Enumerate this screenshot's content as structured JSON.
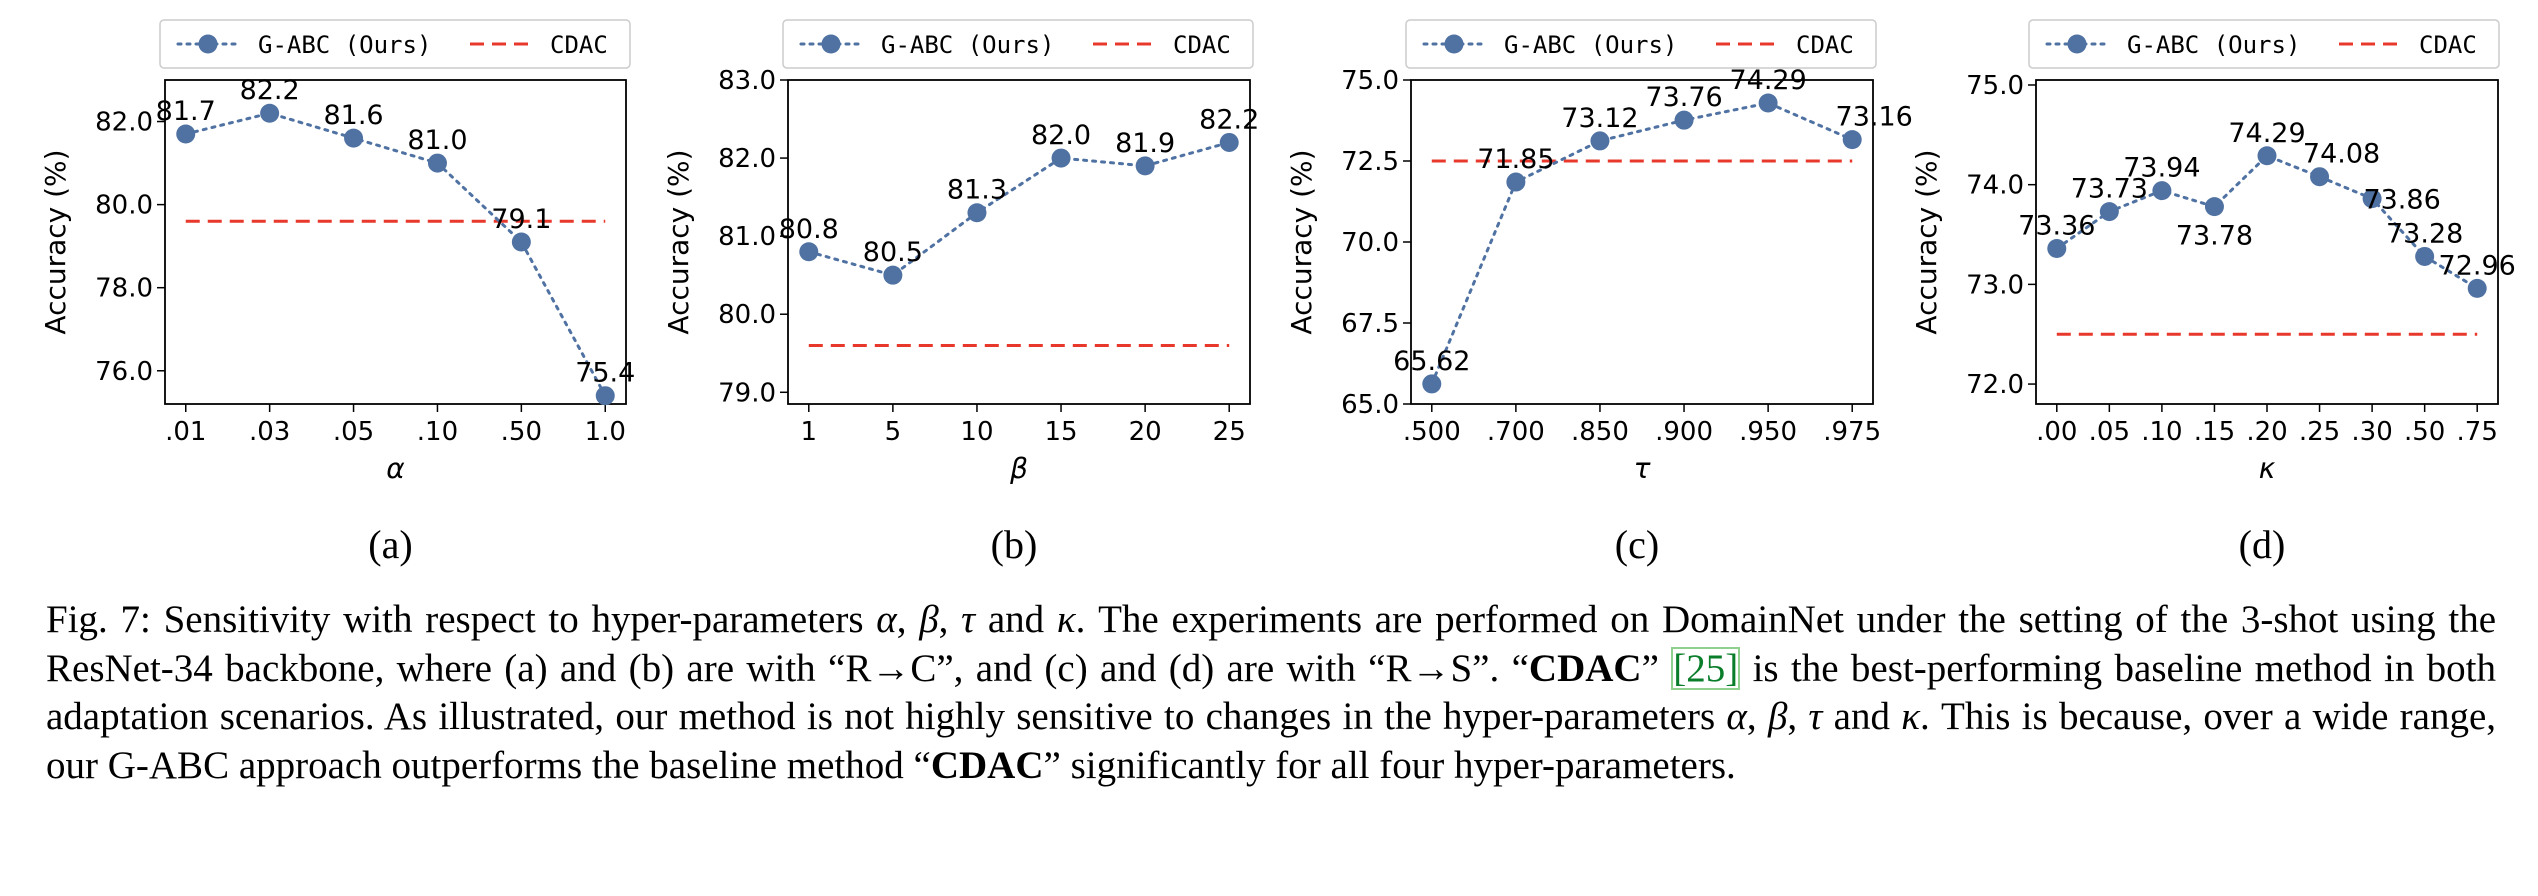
{
  "chart_data": [
    {
      "type": "line",
      "panel_label": "(a)",
      "xlabel": "α",
      "ylabel": "Accuracy (%)",
      "categories": [
        ".01",
        ".03",
        ".05",
        ".10",
        ".50",
        "1.0"
      ],
      "ylim": [
        75.2,
        83.0
      ],
      "yticks": [
        76.0,
        78.0,
        80.0,
        82.0
      ],
      "ytick_labels": [
        "76.0",
        "78.0",
        "80.0",
        "82.0"
      ],
      "series": [
        {
          "name": "G-ABC (Ours)",
          "values": [
            81.7,
            82.2,
            81.6,
            81.0,
            79.1,
            75.4
          ],
          "labels": [
            "81.7",
            "82.2",
            "81.6",
            "81.0",
            "79.1",
            "75.4"
          ],
          "color": "#4f72a3",
          "style": "dotted-marker"
        },
        {
          "name": "CDAC",
          "values": [
            79.6,
            79.6,
            79.6,
            79.6,
            79.6,
            79.6
          ],
          "color": "#e8382c",
          "style": "dashed"
        }
      ],
      "legend": "top",
      "grid": false
    },
    {
      "type": "line",
      "panel_label": "(b)",
      "xlabel": "β",
      "ylabel": "Accuracy (%)",
      "categories": [
        "1",
        "5",
        "10",
        "15",
        "20",
        "25"
      ],
      "ylim": [
        78.85,
        83.0
      ],
      "yticks": [
        79.0,
        80.0,
        81.0,
        82.0,
        83.0
      ],
      "ytick_labels": [
        "79.0",
        "80.0",
        "81.0",
        "82.0",
        "83.0"
      ],
      "series": [
        {
          "name": "G-ABC (Ours)",
          "values": [
            80.8,
            80.5,
            81.3,
            82.0,
            81.9,
            82.2
          ],
          "labels": [
            "80.8",
            "80.5",
            "81.3",
            "82.0",
            "81.9",
            "82.2"
          ],
          "color": "#4f72a3",
          "style": "dotted-marker"
        },
        {
          "name": "CDAC",
          "values": [
            79.6,
            79.6,
            79.6,
            79.6,
            79.6,
            79.6
          ],
          "color": "#e8382c",
          "style": "dashed"
        }
      ],
      "legend": "top",
      "grid": false
    },
    {
      "type": "line",
      "panel_label": "(c)",
      "xlabel": "τ",
      "ylabel": "Accuracy (%)",
      "categories": [
        ".500",
        ".700",
        ".850",
        ".900",
        ".950",
        ".975"
      ],
      "ylim": [
        65.0,
        75.0
      ],
      "yticks": [
        65.0,
        67.5,
        70.0,
        72.5,
        75.0
      ],
      "ytick_labels": [
        "65.0",
        "67.5",
        "70.0",
        "72.5",
        "75.0"
      ],
      "series": [
        {
          "name": "G-ABC (Ours)",
          "values": [
            65.62,
            71.85,
            73.12,
            73.76,
            74.29,
            73.16
          ],
          "labels": [
            "65.62",
            "71.85",
            "73.12",
            "73.76",
            "74.29",
            "73.16"
          ],
          "color": "#4f72a3",
          "style": "dotted-marker"
        },
        {
          "name": "CDAC",
          "values": [
            72.5,
            72.5,
            72.5,
            72.5,
            72.5,
            72.5
          ],
          "color": "#e8382c",
          "style": "dashed"
        }
      ],
      "legend": "top",
      "grid": false
    },
    {
      "type": "line",
      "panel_label": "(d)",
      "xlabel": "κ",
      "ylabel": "Accuracy (%)",
      "categories": [
        ".00",
        ".05",
        ".10",
        ".15",
        ".20",
        ".25",
        ".30",
        ".50",
        ".75"
      ],
      "ylim": [
        71.8,
        75.05
      ],
      "yticks": [
        72.0,
        73.0,
        74.0,
        75.0
      ],
      "ytick_labels": [
        "72.0",
        "73.0",
        "74.0",
        "75.0"
      ],
      "series": [
        {
          "name": "G-ABC (Ours)",
          "values": [
            73.36,
            73.73,
            73.94,
            73.78,
            74.29,
            74.08,
            73.86,
            73.28,
            72.96
          ],
          "labels": [
            "73.36",
            "73.73",
            "73.94",
            "73.78",
            "74.29",
            "74.08",
            "73.86",
            "73.28",
            "72.96"
          ],
          "color": "#4f72a3",
          "style": "dotted-marker"
        },
        {
          "name": "CDAC",
          "values": [
            72.5,
            72.5,
            72.5,
            72.5,
            72.5,
            72.5,
            72.5,
            72.5,
            72.5
          ],
          "color": "#e8382c",
          "style": "dashed"
        }
      ],
      "legend": "top",
      "grid": false
    }
  ],
  "caption": {
    "fig": "Fig. 7:",
    "t1": " Sensitivity with respect to hyper-parameters ",
    "sym_alpha": "α",
    "sym_beta": "β",
    "sym_tau": "τ",
    "sym_kappa": "κ",
    "comma": ", ",
    "and": " and ",
    "t2": ". The experiments are performed on DomainNet under the setting of the 3-shot using the ResNet-34 backbone, where (a) and (b) are with “R→C”, and (c) and (d) are with “R→S”. “",
    "cdac": "CDAC",
    "t3": "” ",
    "cite": "[25]",
    "t4": " is the best-performing baseline method in both adaptation scenarios. As illustrated, our method is not highly sensitive to changes in the hyper-parameters ",
    "t5": ". This is because, over a wide range, our G-ABC approach outperforms the baseline method “",
    "t6": "” significantly for all four hyper-parameters."
  }
}
